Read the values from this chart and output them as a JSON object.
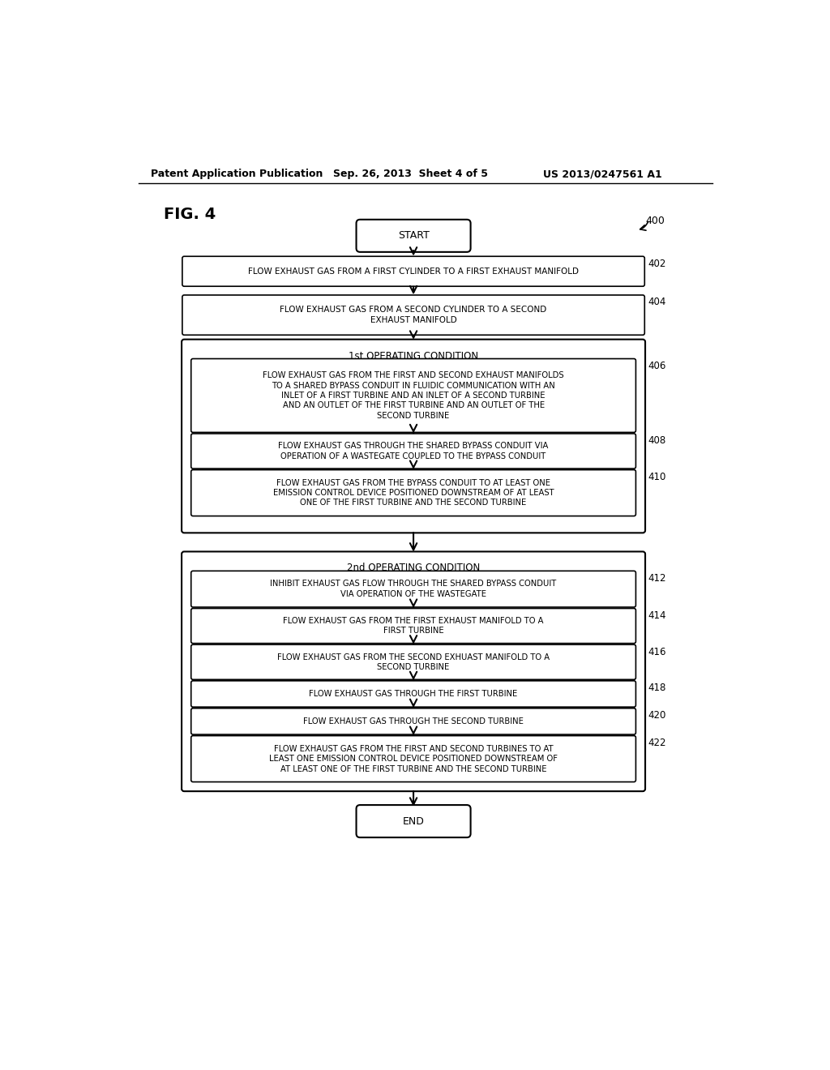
{
  "header_left": "Patent Application Publication",
  "header_center": "Sep. 26, 2013  Sheet 4 of 5",
  "header_right": "US 2013/0247561 A1",
  "fig_label": "FIG. 4",
  "start_label": "START",
  "end_label": "END",
  "fig_number": "400",
  "box_402_text": "FLOW EXHAUST GAS FROM A FIRST CYLINDER TO A FIRST EXHAUST MANIFOLD",
  "box_404_text": "FLOW EXHAUST GAS FROM A SECOND CYLINDER TO A SECOND EXHAUST MANIFOLD",
  "grp1_header": "1st OPERATING CONDITION",
  "box_406_text": "FLOW EXHAUST GAS FROM THE FIRST AND SECOND EXHAUST MANIFOLDS TO A SHARED BYPASS CONDUIT IN FLUIDIC COMMUNICATION WITH AN INLET OF A FIRST TURBINE AND AN INLET OF A SECOND TURBINE AND AN OUTLET OF THE FIRST TURBINE AND AN OUTLET OF THE SECOND TURBINE",
  "box_408_text": "FLOW EXHAUST GAS THROUGH THE SHARED BYPASS CONDUIT VIA OPERATION OF A WASTEGATE COUPLED TO THE BYPASS CONDUIT",
  "box_410_text": "FLOW EXHAUST GAS FROM THE BYPASS CONDUIT TO AT LEAST ONE EMISSION CONTROL DEVICE POSITIONED DOWNSTREAM OF AT LEAST ONE OF THE FIRST TURBINE AND THE SECOND TURBINE",
  "grp2_header": "2nd OPERATING CONDITION",
  "box_412_text": "INHIBIT EXHAUST GAS FLOW THROUGH THE SHARED BYPASS CONDUIT VIA OPERATION OF THE WASTEGATE",
  "box_414_text": "FLOW EXHAUST GAS FROM THE FIRST EXHAUST MANIFOLD TO A FIRST TURBINE",
  "box_416_text": "FLOW EXHAUST GAS FROM THE SECOND EXHUAST MANIFOLD TO A SECOND TURBINE",
  "box_418_text": "FLOW EXHAUST GAS THROUGH THE FIRST TURBINE",
  "box_420_text": "FLOW EXHAUST GAS THROUGH THE SECOND TURBINE",
  "box_422_text": "FLOW EXHAUST GAS FROM THE FIRST AND SECOND TURBINES TO AT LEAST ONE EMISSION CONTROL DEVICE POSITIONED DOWNSTREAM OF AT LEAST ONE OF THE FIRST TURBINE AND THE SECOND TURBINE",
  "background_color": "#ffffff",
  "box_edge_color": "#000000",
  "text_color": "#000000"
}
